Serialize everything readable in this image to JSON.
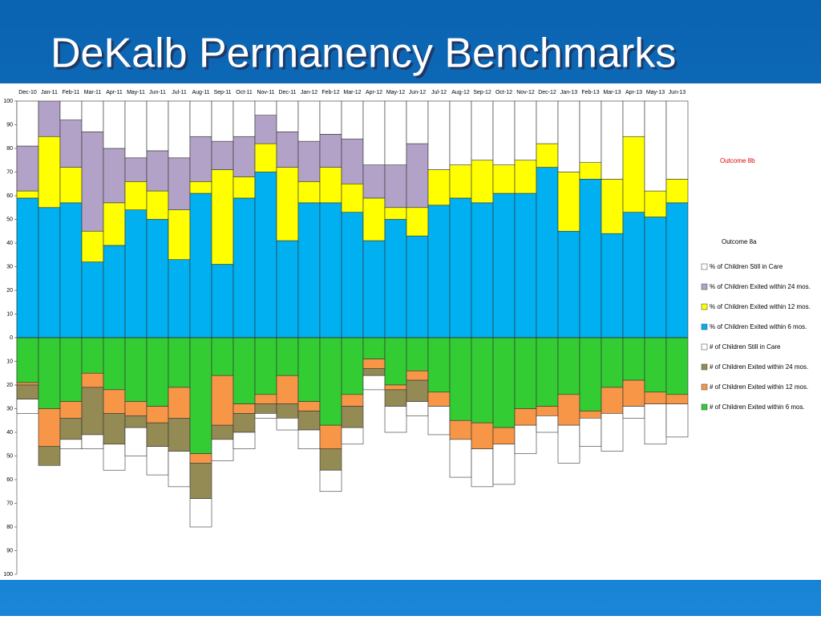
{
  "chart_data": {
    "type": "stacked_bar",
    "title": "DeKalb Permanency Benchmarks",
    "annotations": [
      "Outcome 8b",
      "Outcome 8a"
    ],
    "categories": [
      "Dec-10",
      "Jan-11",
      "Feb-11",
      "Mar-11",
      "Apr-11",
      "May-11",
      "Jun-11",
      "Jul-11",
      "Aug-11",
      "Sep-11",
      "Oct-11",
      "Nov-11",
      "Dec-11",
      "Jan-12",
      "Feb-12",
      "Mar-12",
      "Apr-12",
      "May-12",
      "Jun-12",
      "Jul-12",
      "Aug-12",
      "Sep-12",
      "Oct-12",
      "Nov-12",
      "Dec-12",
      "Jan-13",
      "Feb-13",
      "Mar-13",
      "Apr-13",
      "May-13",
      "Jun-13"
    ],
    "ylim": [
      -100,
      100
    ],
    "yticks": [
      {
        "value": -100,
        "label": "100"
      },
      {
        "value": -90,
        "label": "90"
      },
      {
        "value": -80,
        "label": "80"
      },
      {
        "value": -70,
        "label": "70"
      },
      {
        "value": -60,
        "label": "60"
      },
      {
        "value": -50,
        "label": "50"
      },
      {
        "value": -40,
        "label": "40"
      },
      {
        "value": -30,
        "label": "30"
      },
      {
        "value": -20,
        "label": "20"
      },
      {
        "value": -10,
        "label": "10"
      },
      0,
      10,
      20,
      30,
      40,
      50,
      60,
      70,
      80,
      90,
      100
    ],
    "series": [
      {
        "name": "% of Children Exited within 6 mos.",
        "color": "#00b0f0",
        "values": [
          59,
          55,
          57,
          32,
          39,
          54,
          50,
          33,
          61,
          31,
          59,
          70,
          41,
          57,
          57,
          53,
          41,
          50,
          43,
          56,
          59,
          57,
          61,
          61,
          72,
          45,
          67,
          44,
          53,
          51,
          57
        ]
      },
      {
        "name": "% of Children Exited within 12 mos.",
        "color": "#ffff00",
        "values": [
          3,
          30,
          15,
          13,
          18,
          12,
          12,
          21,
          5,
          40,
          9,
          12,
          31,
          9,
          15,
          12,
          18,
          5,
          12,
          15,
          14,
          18,
          12,
          14,
          10,
          25,
          7,
          23,
          32,
          11,
          10
        ]
      },
      {
        "name": "% of Children Exited within 24 mos.",
        "color": "#b3a2c7",
        "values": [
          19,
          15,
          20,
          42,
          23,
          10,
          17,
          22,
          19,
          12,
          17,
          12,
          15,
          17,
          14,
          19,
          14,
          18,
          27,
          0,
          0,
          0,
          0,
          0,
          0,
          0,
          0,
          0,
          0,
          0,
          0
        ]
      },
      {
        "name": "% of Children Still in Care",
        "color": "#ffffff",
        "values": [
          19,
          0,
          8,
          13,
          20,
          24,
          21,
          24,
          15,
          17,
          15,
          6,
          13,
          17,
          14,
          16,
          27,
          27,
          18,
          29,
          27,
          25,
          27,
          25,
          18,
          30,
          26,
          33,
          15,
          38,
          33
        ]
      },
      {
        "name": "# of Children Exited within 6 mos.",
        "color": "#33cc33",
        "values": [
          -19,
          -30,
          -27,
          -15,
          -22,
          -27,
          -29,
          -21,
          -49,
          -16,
          -28,
          -24,
          -16,
          -27,
          -37,
          -24,
          -9,
          -20,
          -14,
          -23,
          -35,
          -36,
          -38,
          -30,
          -29,
          -24,
          -31,
          -21,
          -18,
          -23,
          -24
        ]
      },
      {
        "name": "# of Children Exited within 12 mos.",
        "color": "#f79646",
        "values": [
          -1,
          -16,
          -7,
          -6,
          -10,
          -6,
          -7,
          -13,
          -4,
          -21,
          -4,
          -4,
          -12,
          -4,
          -10,
          -5,
          -4,
          -2,
          -4,
          -6,
          -8,
          -11,
          -7,
          -7,
          -4,
          -13,
          -3,
          -11,
          -11,
          -5,
          -4
        ]
      },
      {
        "name": "# of Children Exited within 24 mos.",
        "color": "#948a54",
        "values": [
          -6,
          -8,
          -9,
          -20,
          -13,
          -5,
          -10,
          -14,
          -15,
          -6,
          -8,
          -4,
          -6,
          -8,
          -9,
          -9,
          -3,
          -7,
          -9,
          0,
          0,
          0,
          0,
          0,
          0,
          0,
          0,
          0,
          0,
          0,
          0
        ]
      },
      {
        "name": "# of Children Still in Care",
        "color": "#ffffff",
        "values": [
          -6,
          0,
          -4,
          -6,
          -11,
          -12,
          -12,
          -15,
          -12,
          -9,
          -7,
          -2,
          -5,
          -8,
          -9,
          -7,
          -6,
          -11,
          -6,
          -12,
          -16,
          -16,
          -17,
          -12,
          -7,
          -16,
          -12,
          -16,
          -5,
          -17,
          -14
        ]
      }
    ]
  }
}
